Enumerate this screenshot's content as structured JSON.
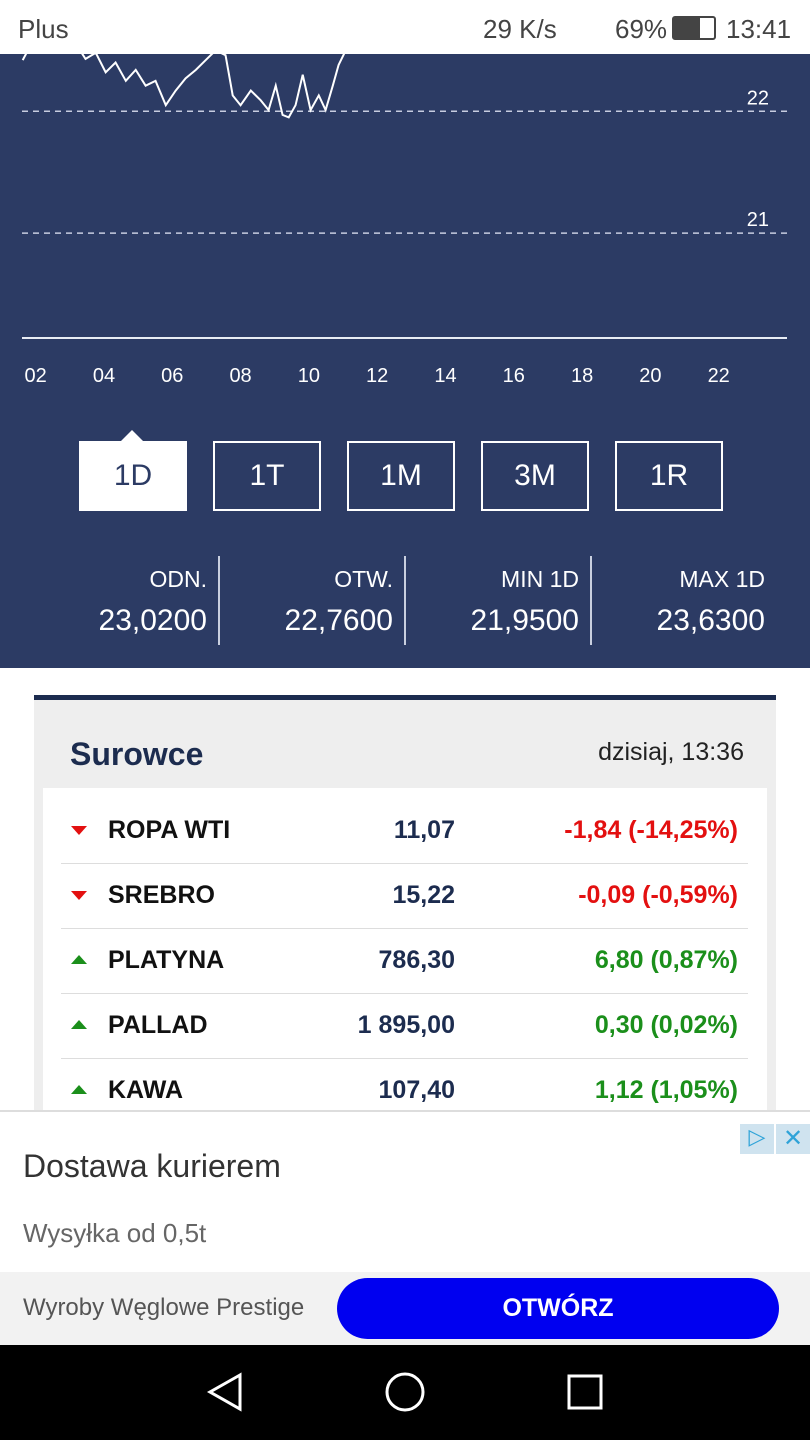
{
  "status_bar": {
    "carrier": "Plus",
    "speed": "29 K/s",
    "battery": "69%",
    "time": "13:41"
  },
  "chart_data": {
    "type": "line",
    "x": [
      1.62,
      1.85,
      2.29,
      3.02,
      3.46,
      3.76,
      4.05,
      4.34,
      4.64,
      4.93,
      5.22,
      5.51,
      5.81,
      6.1,
      6.39,
      6.69,
      6.98,
      7.27,
      7.56,
      7.77,
      8.0,
      8.3,
      8.59,
      8.82,
      9.03,
      9.23,
      9.41,
      9.61,
      9.82,
      10.05,
      10.29,
      10.49,
      10.7,
      10.87,
      11.08,
      11.22
    ],
    "series": [
      {
        "color": "#ffffff",
        "values": [
          22.42,
          22.54,
          22.58,
          22.62,
          22.43,
          22.48,
          22.32,
          22.4,
          22.25,
          22.34,
          22.21,
          22.25,
          22.05,
          22.17,
          22.27,
          22.34,
          22.42,
          22.5,
          22.46,
          22.13,
          22.05,
          22.17,
          22.09,
          22.01,
          22.21,
          21.97,
          21.95,
          22.05,
          22.3,
          22.01,
          22.13,
          22.01,
          22.21,
          22.38,
          22.5,
          22.62
        ]
      }
    ],
    "xlim": [
      1.6,
      24
    ],
    "xticks": [
      {
        "value": 2,
        "label": "02"
      },
      {
        "value": 4,
        "label": "04"
      },
      {
        "value": 6,
        "label": "06"
      },
      {
        "value": 8,
        "label": "08"
      },
      {
        "value": 10,
        "label": "10"
      },
      {
        "value": 12,
        "label": "12"
      },
      {
        "value": 14,
        "label": "14"
      },
      {
        "value": 16,
        "label": "16"
      },
      {
        "value": 18,
        "label": "18"
      },
      {
        "value": 20,
        "label": "20"
      },
      {
        "value": 22,
        "label": "22"
      }
    ],
    "ylim": [
      20.14,
      22.47
    ],
    "yticks": [
      21,
      22
    ],
    "grid": true
  },
  "ranges": {
    "options": [
      "1D",
      "1T",
      "1M",
      "3M",
      "1R"
    ],
    "selected": 0
  },
  "stats": [
    {
      "label": "ODN.",
      "value": "23,0200"
    },
    {
      "label": "OTW.",
      "value": "22,7600"
    },
    {
      "label": "MIN 1D",
      "value": "21,9500"
    },
    {
      "label": "MAX 1D",
      "value": "23,6300"
    }
  ],
  "commodities": {
    "title": "Surowce",
    "updated": "dzisiaj, 13:36",
    "rows": [
      {
        "name": "ROPA WTI",
        "price": "11,07",
        "change": "-1,84 (-14,25%)",
        "trend": "down"
      },
      {
        "name": "SREBRO",
        "price": "15,22",
        "change": "-0,09 (-0,59%)",
        "trend": "down"
      },
      {
        "name": "PLATYNA",
        "price": "786,30",
        "change": "6,80 (0,87%)",
        "trend": "up"
      },
      {
        "name": "PALLAD",
        "price": "1 895,00",
        "change": "0,30 (0,02%)",
        "trend": "up"
      },
      {
        "name": "KAWA",
        "price": "107,40",
        "change": "1,12 (1,05%)",
        "trend": "up"
      }
    ]
  },
  "ad": {
    "headline": "Dostawa kurierem",
    "text": "Wysyłka od 0,5t",
    "advertiser": "Wyroby Węglowe Prestige",
    "button": "OTWÓRZ"
  }
}
